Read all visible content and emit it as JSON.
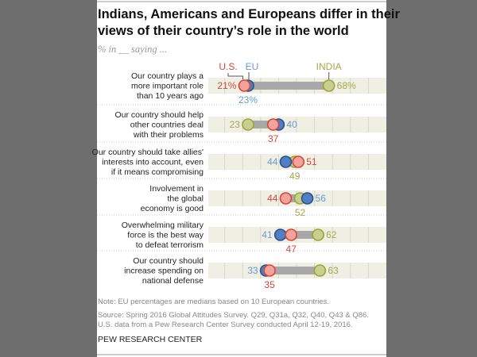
{
  "chart_data": {
    "type": "dot",
    "title": "Indians, Americans and Europeans differ in their views of their country's role in the world",
    "subtitle": "% in __ saying ...",
    "xlim": [
      0,
      100
    ],
    "grid": true,
    "series": [
      {
        "name": "U.S.",
        "color": "#d4473b",
        "fill": "#f2a39b"
      },
      {
        "name": "EU",
        "color": "#2f4f86",
        "fill": "#4f7fc4",
        "label_color": "#6a9bd1"
      },
      {
        "name": "INDIA",
        "color": "#9aa53a",
        "fill": "#c8d08f",
        "label_color": "#a3a84a"
      }
    ],
    "categories": [
      {
        "label": [
          "Our country plays a",
          "more important role",
          "than 10 years ago"
        ],
        "values": [
          21,
          23,
          68
        ],
        "percent": true
      },
      {
        "label": [
          "Our country should help",
          "other countries deal",
          "with their problems"
        ],
        "values": [
          37,
          40,
          23
        ]
      },
      {
        "label": [
          "Our country should take allies'",
          "interests into account, even",
          "if it means compromising"
        ],
        "values": [
          51,
          44,
          49
        ]
      },
      {
        "label": [
          "Involvement in",
          "the global",
          "economy is good"
        ],
        "values": [
          44,
          56,
          52
        ]
      },
      {
        "label": [
          "Overwhelming military",
          "force is the best way",
          "to defeat terrorism"
        ],
        "values": [
          47,
          41,
          62
        ]
      },
      {
        "label": [
          "Our country should",
          "increase spending on",
          "national defense"
        ],
        "values": [
          35,
          33,
          63
        ]
      }
    ]
  },
  "footer": {
    "note": "Note: EU percentages are medians based on 10 European countries.",
    "source1": "Source: Spring 2016 Global Attitudes Survey. Q29, Q31a, Q32, Q40, Q43 & Q86.",
    "source2": "U.S. data from a Pew Research Center Survey conducted April 12-19, 2016.",
    "org": "PEW RESEARCH CENTER"
  }
}
